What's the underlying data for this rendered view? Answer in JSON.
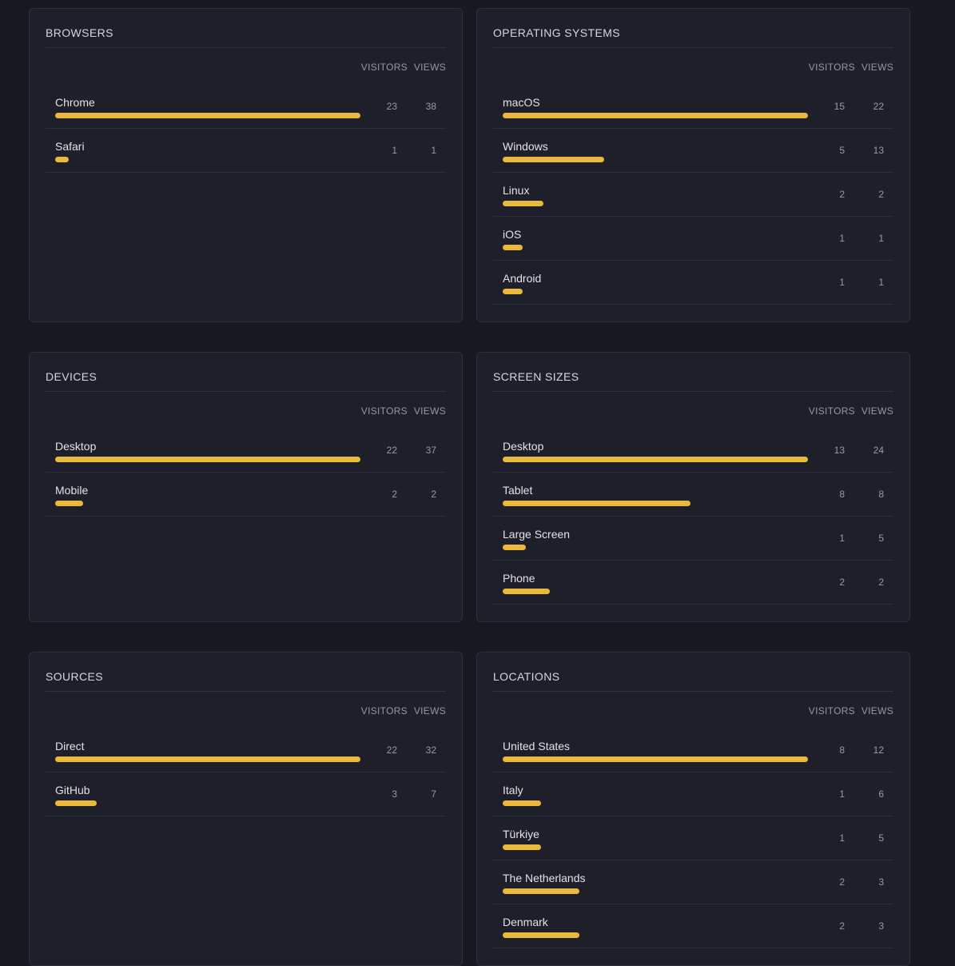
{
  "panels": [
    {
      "title": "BROWSERS",
      "columns": [
        "VISITORS",
        "VIEWS"
      ],
      "rows": [
        {
          "name": "Chrome",
          "visitors": 23,
          "views": 38
        },
        {
          "name": "Safari",
          "visitors": 1,
          "views": 1
        }
      ]
    },
    {
      "title": "OPERATING SYSTEMS",
      "columns": [
        "VISITORS",
        "VIEWS"
      ],
      "rows": [
        {
          "name": "macOS",
          "visitors": 15,
          "views": 22
        },
        {
          "name": "Windows",
          "visitors": 5,
          "views": 13
        },
        {
          "name": "Linux",
          "visitors": 2,
          "views": 2
        },
        {
          "name": "iOS",
          "visitors": 1,
          "views": 1
        },
        {
          "name": "Android",
          "visitors": 1,
          "views": 1
        }
      ]
    },
    {
      "title": "DEVICES",
      "columns": [
        "VISITORS",
        "VIEWS"
      ],
      "rows": [
        {
          "name": "Desktop",
          "visitors": 22,
          "views": 37
        },
        {
          "name": "Mobile",
          "visitors": 2,
          "views": 2
        }
      ]
    },
    {
      "title": "SCREEN SIZES",
      "columns": [
        "VISITORS",
        "VIEWS"
      ],
      "rows": [
        {
          "name": "Desktop",
          "visitors": 13,
          "views": 24
        },
        {
          "name": "Tablet",
          "visitors": 8,
          "views": 8
        },
        {
          "name": "Large Screen",
          "visitors": 1,
          "views": 5
        },
        {
          "name": "Phone",
          "visitors": 2,
          "views": 2
        }
      ]
    },
    {
      "title": "SOURCES",
      "columns": [
        "VISITORS",
        "VIEWS"
      ],
      "rows": [
        {
          "name": "Direct",
          "visitors": 22,
          "views": 32
        },
        {
          "name": "GitHub",
          "visitors": 3,
          "views": 7
        }
      ]
    },
    {
      "title": "LOCATIONS",
      "columns": [
        "VISITORS",
        "VIEWS"
      ],
      "rows": [
        {
          "name": "United States",
          "visitors": 8,
          "views": 12
        },
        {
          "name": "Italy",
          "visitors": 1,
          "views": 6
        },
        {
          "name": "Türkiye",
          "visitors": 1,
          "views": 5
        },
        {
          "name": "The Netherlands",
          "visitors": 2,
          "views": 3
        },
        {
          "name": "Denmark",
          "visitors": 2,
          "views": 3
        }
      ]
    }
  ]
}
